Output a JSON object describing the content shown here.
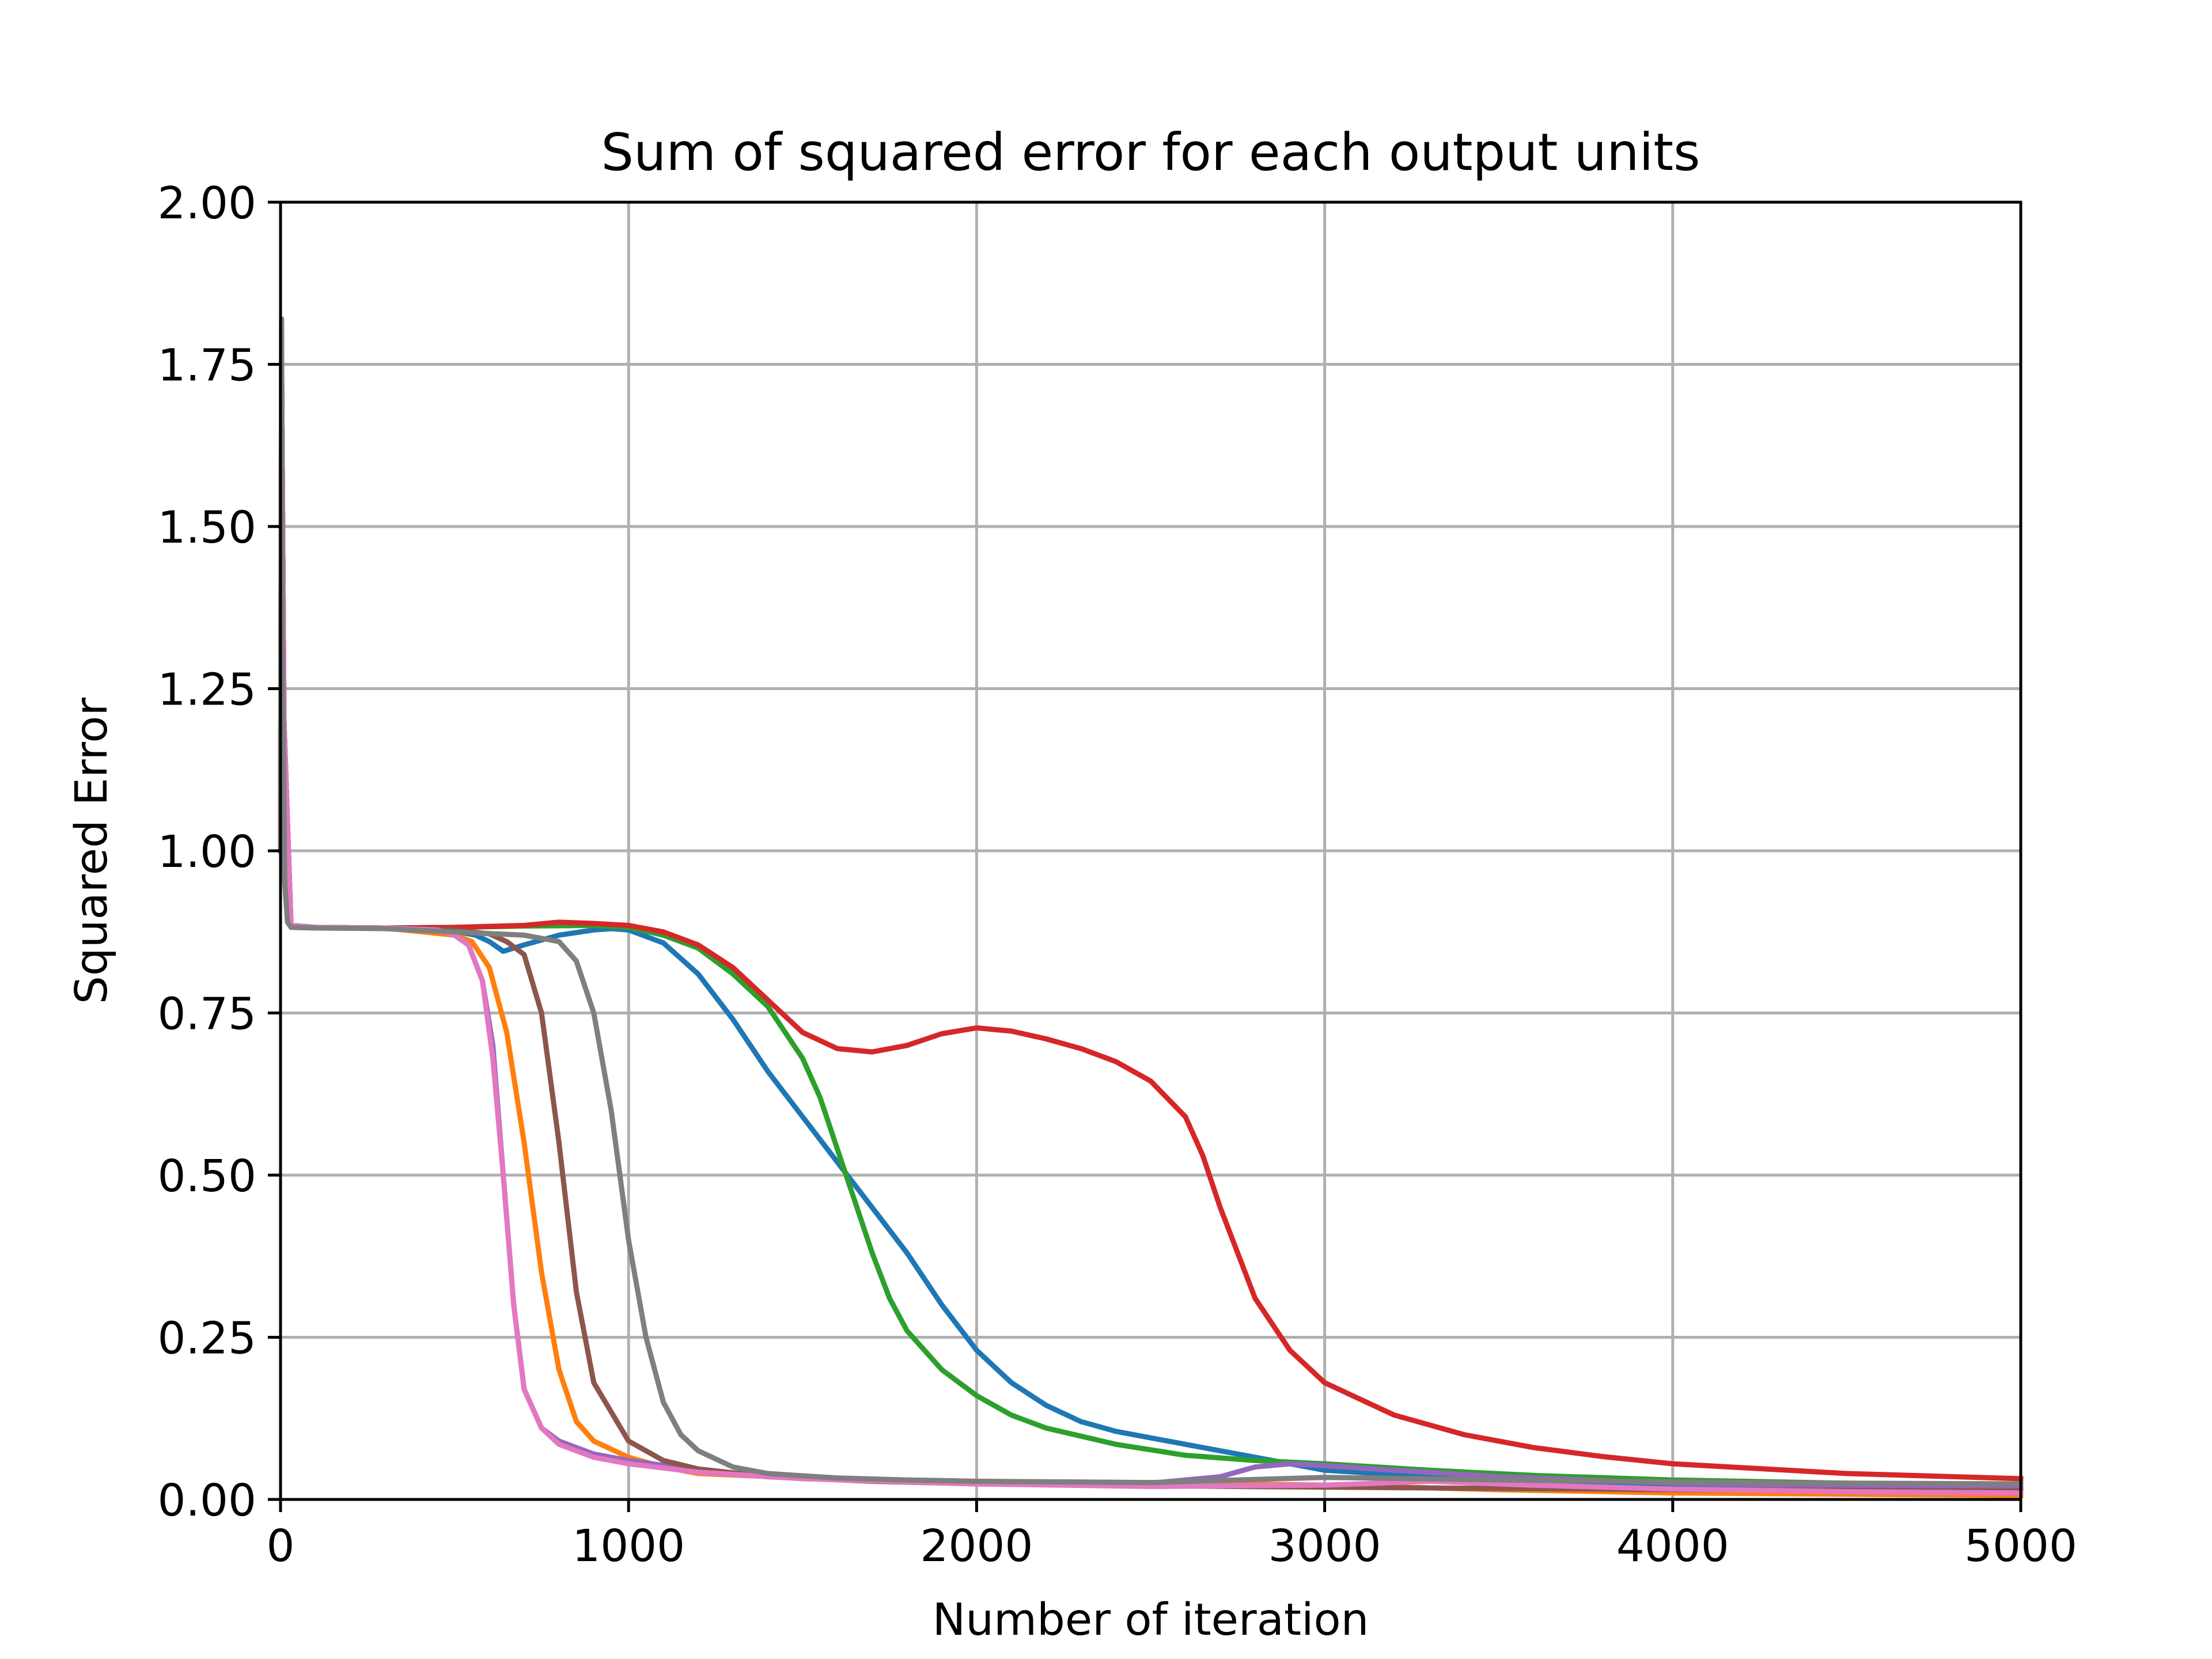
{
  "chart_data": {
    "type": "line",
    "title": "Sum of squared error for each output units",
    "xlabel": "Number of iteration",
    "ylabel": "Squared Error",
    "xlim": [
      0,
      5000
    ],
    "ylim": [
      0,
      2.0
    ],
    "xticks": [
      0,
      1000,
      2000,
      3000,
      4000,
      5000
    ],
    "xtick_labels": [
      "0",
      "1000",
      "2000",
      "3000",
      "4000",
      "5000"
    ],
    "yticks": [
      0,
      0.25,
      0.5,
      0.75,
      1.0,
      1.25,
      1.5,
      1.75,
      2.0
    ],
    "ytick_labels": [
      "0.00",
      "0.25",
      "0.50",
      "0.75",
      "1.00",
      "1.25",
      "1.50",
      "1.75",
      "2.00"
    ],
    "grid": true,
    "legend": "none",
    "series": [
      {
        "color": "#1f77b4",
        "x": [
          0,
          3,
          10,
          30,
          100,
          300,
          500,
          560,
          600,
          640,
          700,
          800,
          900,
          950,
          1000,
          1100,
          1200,
          1300,
          1400,
          1500,
          1600,
          1700,
          1800,
          1900,
          2000,
          2100,
          2200,
          2300,
          2400,
          2600,
          2800,
          3000,
          3300,
          3600,
          4000,
          4500,
          5000
        ],
        "y": [
          1.0,
          1.75,
          1.2,
          0.885,
          0.882,
          0.881,
          0.876,
          0.87,
          0.86,
          0.845,
          0.855,
          0.87,
          0.878,
          0.88,
          0.878,
          0.858,
          0.81,
          0.74,
          0.66,
          0.59,
          0.52,
          0.45,
          0.38,
          0.3,
          0.23,
          0.18,
          0.145,
          0.12,
          0.105,
          0.085,
          0.065,
          0.045,
          0.035,
          0.028,
          0.022,
          0.016,
          0.012
        ]
      },
      {
        "color": "#ff7f0e",
        "x": [
          0,
          3,
          10,
          30,
          100,
          300,
          500,
          550,
          600,
          650,
          700,
          750,
          800,
          850,
          900,
          1000,
          1100,
          1200,
          1500,
          2000,
          2500,
          3000,
          3500,
          4000,
          4500,
          5000
        ],
        "y": [
          1.0,
          1.75,
          1.2,
          0.885,
          0.882,
          0.881,
          0.87,
          0.86,
          0.82,
          0.72,
          0.55,
          0.35,
          0.2,
          0.12,
          0.09,
          0.065,
          0.05,
          0.04,
          0.033,
          0.028,
          0.026,
          0.022,
          0.015,
          0.01,
          0.008,
          0.006
        ]
      },
      {
        "color": "#2ca02c",
        "x": [
          0,
          3,
          10,
          30,
          100,
          300,
          500,
          700,
          900,
          1000,
          1100,
          1200,
          1300,
          1400,
          1500,
          1550,
          1600,
          1650,
          1700,
          1750,
          1800,
          1900,
          2000,
          2100,
          2200,
          2400,
          2600,
          2800,
          3000,
          3300,
          3600,
          4000,
          4500,
          5000
        ],
        "y": [
          1.0,
          1.75,
          1.2,
          0.885,
          0.882,
          0.881,
          0.882,
          0.884,
          0.885,
          0.882,
          0.87,
          0.85,
          0.81,
          0.76,
          0.68,
          0.62,
          0.54,
          0.46,
          0.38,
          0.31,
          0.26,
          0.2,
          0.16,
          0.13,
          0.11,
          0.085,
          0.068,
          0.06,
          0.055,
          0.045,
          0.037,
          0.03,
          0.025,
          0.022
        ]
      },
      {
        "color": "#d62728",
        "x": [
          0,
          3,
          10,
          30,
          100,
          300,
          500,
          700,
          800,
          900,
          1000,
          1100,
          1200,
          1300,
          1400,
          1500,
          1600,
          1700,
          1800,
          1900,
          2000,
          2100,
          2200,
          2300,
          2400,
          2500,
          2600,
          2650,
          2700,
          2750,
          2800,
          2900,
          3000,
          3200,
          3400,
          3600,
          3800,
          4000,
          4500,
          5000
        ],
        "y": [
          1.0,
          1.75,
          1.2,
          0.885,
          0.882,
          0.881,
          0.882,
          0.885,
          0.89,
          0.888,
          0.885,
          0.875,
          0.855,
          0.82,
          0.77,
          0.72,
          0.695,
          0.69,
          0.7,
          0.718,
          0.727,
          0.722,
          0.71,
          0.695,
          0.675,
          0.645,
          0.59,
          0.53,
          0.45,
          0.38,
          0.31,
          0.23,
          0.18,
          0.13,
          0.1,
          0.08,
          0.066,
          0.055,
          0.04,
          0.032
        ]
      },
      {
        "color": "#9467bd",
        "x": [
          0,
          3,
          10,
          30,
          100,
          300,
          450,
          500,
          540,
          580,
          610,
          640,
          670,
          700,
          750,
          800,
          900,
          1000,
          1200,
          1500,
          2000,
          2500,
          2700,
          2800,
          2900,
          3000,
          3200,
          3500,
          4000,
          4500,
          5000
        ],
        "y": [
          1.0,
          1.75,
          1.2,
          0.885,
          0.882,
          0.881,
          0.878,
          0.87,
          0.855,
          0.8,
          0.7,
          0.5,
          0.3,
          0.17,
          0.11,
          0.09,
          0.07,
          0.06,
          0.045,
          0.033,
          0.025,
          0.025,
          0.035,
          0.05,
          0.055,
          0.052,
          0.045,
          0.035,
          0.025,
          0.02,
          0.016
        ]
      },
      {
        "color": "#8c564b",
        "x": [
          0,
          3,
          10,
          30,
          100,
          300,
          500,
          600,
          650,
          700,
          750,
          800,
          850,
          900,
          1000,
          1100,
          1200,
          1400,
          1700,
          2000,
          2500,
          3000,
          3500,
          4000,
          4500,
          5000
        ],
        "y": [
          1.0,
          1.75,
          1.2,
          0.885,
          0.882,
          0.881,
          0.878,
          0.872,
          0.86,
          0.84,
          0.75,
          0.55,
          0.32,
          0.18,
          0.09,
          0.06,
          0.047,
          0.035,
          0.028,
          0.024,
          0.021,
          0.019,
          0.017,
          0.015,
          0.014,
          0.013
        ]
      },
      {
        "color": "#e377c2",
        "x": [
          0,
          3,
          10,
          30,
          100,
          300,
          450,
          500,
          540,
          580,
          610,
          640,
          670,
          700,
          750,
          800,
          900,
          1000,
          1200,
          1500,
          2000,
          2500,
          3000,
          3300,
          3600,
          4000,
          4500,
          5000
        ],
        "y": [
          1.0,
          1.75,
          1.2,
          0.885,
          0.882,
          0.881,
          0.878,
          0.87,
          0.855,
          0.8,
          0.68,
          0.5,
          0.3,
          0.17,
          0.11,
          0.085,
          0.065,
          0.055,
          0.042,
          0.032,
          0.024,
          0.02,
          0.022,
          0.028,
          0.022,
          0.016,
          0.012,
          0.01
        ]
      },
      {
        "color": "#7f7f7f",
        "x": [
          0,
          3,
          6,
          12,
          20,
          30,
          100,
          300,
          500,
          700,
          800,
          850,
          900,
          950,
          1000,
          1050,
          1100,
          1150,
          1200,
          1300,
          1400,
          1600,
          1800,
          2000,
          2500,
          3000,
          3500,
          4000,
          4500,
          5000
        ],
        "y": [
          1.0,
          1.82,
          1.3,
          0.95,
          0.89,
          0.882,
          0.881,
          0.88,
          0.875,
          0.87,
          0.86,
          0.83,
          0.75,
          0.6,
          0.4,
          0.25,
          0.15,
          0.1,
          0.075,
          0.05,
          0.04,
          0.033,
          0.03,
          0.028,
          0.026,
          0.034,
          0.03,
          0.027,
          0.025,
          0.024
        ]
      }
    ]
  }
}
